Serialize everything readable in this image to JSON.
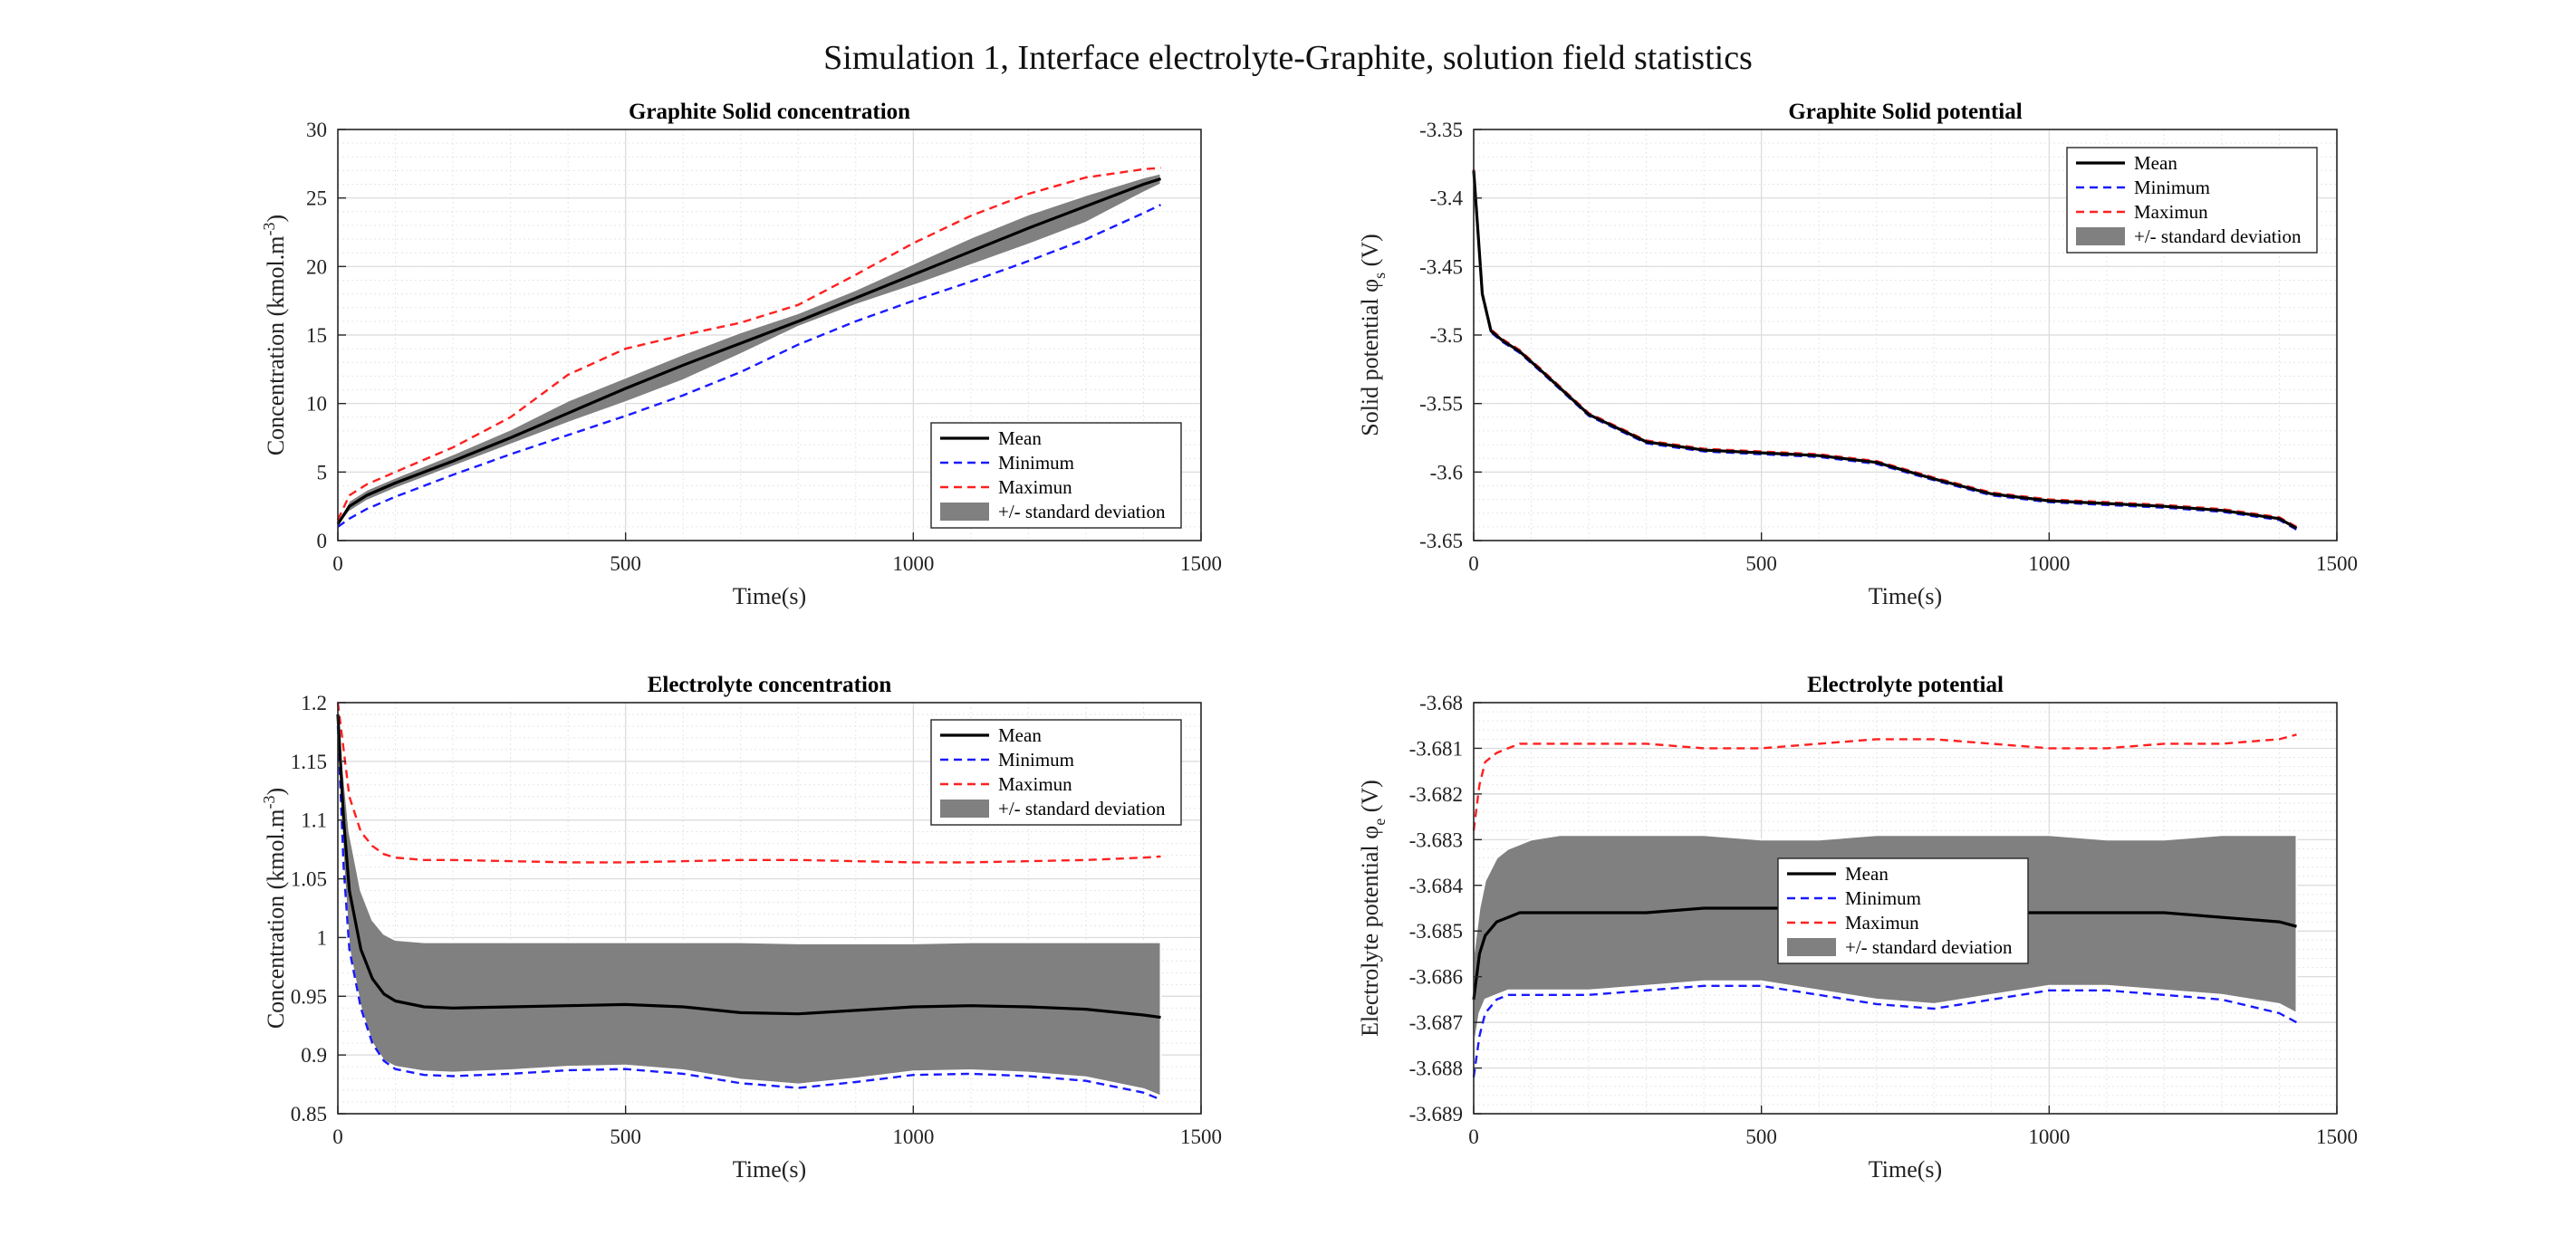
{
  "figure": {
    "title": "Simulation 1, Interface electrolyte-Graphite, solution field statistics"
  },
  "chart_data": [
    {
      "type": "line",
      "title": "Graphite Solid concentration",
      "xlabel": "Time(s)",
      "ylabel": "Concentration (kmol.m^-3)",
      "ylabel_parts": {
        "base": "Concentration (kmol.m",
        "sup": "-3",
        "end": ")"
      },
      "xlim": [
        0,
        1500
      ],
      "ylim": [
        0,
        30
      ],
      "xticks": [
        0,
        500,
        1000,
        1500
      ],
      "yticks": [
        0,
        5,
        10,
        15,
        20,
        25,
        30
      ],
      "grid": true,
      "legend_position": "bottom-right",
      "legend": [
        "Mean",
        "Minimum",
        "Maximun",
        "+/- standard deviation"
      ],
      "x": [
        0,
        20,
        50,
        100,
        200,
        300,
        400,
        500,
        600,
        700,
        800,
        900,
        1000,
        1100,
        1200,
        1300,
        1400,
        1430
      ],
      "series": [
        {
          "name": "Mean",
          "values": [
            1.2,
            2.5,
            3.3,
            4.2,
            5.8,
            7.5,
            9.3,
            11.1,
            12.8,
            14.4,
            16.0,
            17.7,
            19.4,
            21.1,
            22.8,
            24.4,
            26.0,
            26.4
          ]
        },
        {
          "name": "Minimum",
          "values": [
            1.0,
            1.6,
            2.3,
            3.2,
            4.8,
            6.3,
            7.7,
            9.1,
            10.6,
            12.3,
            14.3,
            16.0,
            17.5,
            18.9,
            20.4,
            22.0,
            23.9,
            24.5
          ]
        },
        {
          "name": "Maximun",
          "values": [
            1.5,
            3.3,
            4.1,
            5.0,
            6.8,
            9.0,
            12.1,
            14.0,
            15.0,
            15.9,
            17.2,
            19.4,
            21.7,
            23.7,
            25.3,
            26.5,
            27.1,
            27.2
          ]
        },
        {
          "name": "+/- standard deviation",
          "lower": [
            1.0,
            2.1,
            2.9,
            3.8,
            5.4,
            7.0,
            8.6,
            10.1,
            11.7,
            13.6,
            15.6,
            17.2,
            18.6,
            20.1,
            21.6,
            23.2,
            25.4,
            26.0
          ],
          "upper": [
            1.4,
            2.9,
            3.7,
            4.6,
            6.3,
            8.1,
            10.2,
            11.9,
            13.6,
            15.2,
            16.6,
            18.3,
            20.2,
            22.1,
            23.8,
            25.2,
            26.5,
            26.8
          ]
        }
      ]
    },
    {
      "type": "line",
      "title": "Graphite Solid potential",
      "xlabel": "Time(s)",
      "ylabel": "Solid potential φs (V)",
      "ylabel_parts": {
        "base": "Solid potential φ",
        "sub": "s",
        "end": " (V)"
      },
      "xlim": [
        0,
        1500
      ],
      "ylim": [
        -3.65,
        -3.35
      ],
      "xticks": [
        0,
        500,
        1000,
        1500
      ],
      "yticks": [
        -3.65,
        -3.6,
        -3.55,
        -3.5,
        -3.45,
        -3.4,
        -3.35
      ],
      "grid": true,
      "legend_position": "top-right",
      "legend": [
        "Mean",
        "Minimum",
        "Maximun",
        "+/- standard deviation"
      ],
      "x": [
        0,
        5,
        15,
        30,
        50,
        80,
        120,
        200,
        300,
        400,
        500,
        600,
        700,
        800,
        900,
        1000,
        1100,
        1200,
        1300,
        1400,
        1430
      ],
      "series": [
        {
          "name": "Mean",
          "values": [
            -3.38,
            -3.41,
            -3.47,
            -3.497,
            -3.504,
            -3.512,
            -3.527,
            -3.558,
            -3.578,
            -3.584,
            -3.586,
            -3.588,
            -3.593,
            -3.605,
            -3.616,
            -3.621,
            -3.623,
            -3.625,
            -3.628,
            -3.634,
            -3.641
          ]
        },
        {
          "name": "Minimum",
          "values": [
            -3.381,
            -3.411,
            -3.471,
            -3.498,
            -3.505,
            -3.513,
            -3.528,
            -3.559,
            -3.579,
            -3.585,
            -3.587,
            -3.589,
            -3.594,
            -3.606,
            -3.617,
            -3.622,
            -3.624,
            -3.626,
            -3.629,
            -3.635,
            -3.642
          ]
        },
        {
          "name": "Maximun",
          "values": [
            -3.379,
            -3.409,
            -3.469,
            -3.496,
            -3.503,
            -3.511,
            -3.526,
            -3.557,
            -3.577,
            -3.583,
            -3.585,
            -3.587,
            -3.592,
            -3.604,
            -3.615,
            -3.62,
            -3.622,
            -3.624,
            -3.627,
            -3.633,
            -3.64
          ]
        },
        {
          "name": "+/- standard deviation",
          "lower": [
            -3.3805,
            -3.4105,
            -3.4705,
            -3.4975,
            -3.5045,
            -3.5125,
            -3.5275,
            -3.5585,
            -3.5785,
            -3.5845,
            -3.5865,
            -3.5885,
            -3.5935,
            -3.6055,
            -3.6165,
            -3.6215,
            -3.6235,
            -3.6255,
            -3.6285,
            -3.6345,
            -3.6415
          ],
          "upper": [
            -3.3795,
            -3.4095,
            -3.4695,
            -3.4965,
            -3.5035,
            -3.5115,
            -3.5265,
            -3.5575,
            -3.5775,
            -3.5835,
            -3.5855,
            -3.5875,
            -3.5925,
            -3.6045,
            -3.6155,
            -3.6205,
            -3.6225,
            -3.6245,
            -3.6275,
            -3.6335,
            -3.6405
          ]
        }
      ]
    },
    {
      "type": "line",
      "title": "Electrolyte concentration",
      "xlabel": "Time(s)",
      "ylabel": "Concentration (kmol.m^-3)",
      "ylabel_parts": {
        "base": "Concentration (kmol.m",
        "sup": "-3",
        "end": ")"
      },
      "xlim": [
        0,
        1500
      ],
      "ylim": [
        0.85,
        1.2
      ],
      "xticks": [
        0,
        500,
        1000,
        1500
      ],
      "yticks": [
        0.85,
        0.9,
        0.95,
        1,
        1.05,
        1.1,
        1.15,
        1.2
      ],
      "ytick_labels": [
        "0.85",
        "0.9",
        "0.95",
        "1",
        "1.05",
        "1.1",
        "1.15",
        "1.2"
      ],
      "grid": true,
      "legend_position": "top-right",
      "legend": [
        "Mean",
        "Minimum",
        "Maximun",
        "+/- standard deviation"
      ],
      "x": [
        0,
        10,
        20,
        40,
        60,
        80,
        100,
        150,
        200,
        300,
        400,
        500,
        600,
        700,
        800,
        900,
        1000,
        1100,
        1200,
        1300,
        1400,
        1430
      ],
      "series": [
        {
          "name": "Mean",
          "values": [
            1.19,
            1.1,
            1.04,
            0.99,
            0.965,
            0.952,
            0.946,
            0.941,
            0.94,
            0.941,
            0.942,
            0.943,
            0.941,
            0.936,
            0.935,
            0.938,
            0.941,
            0.942,
            0.941,
            0.939,
            0.934,
            0.932
          ]
        },
        {
          "name": "Minimum",
          "values": [
            1.18,
            1.06,
            0.99,
            0.94,
            0.91,
            0.895,
            0.888,
            0.883,
            0.882,
            0.884,
            0.887,
            0.888,
            0.884,
            0.876,
            0.872,
            0.877,
            0.883,
            0.884,
            0.882,
            0.878,
            0.868,
            0.862
          ]
        },
        {
          "name": "Maximun",
          "values": [
            1.2,
            1.16,
            1.12,
            1.09,
            1.078,
            1.071,
            1.068,
            1.066,
            1.066,
            1.065,
            1.064,
            1.064,
            1.065,
            1.066,
            1.066,
            1.065,
            1.064,
            1.064,
            1.065,
            1.066,
            1.068,
            1.069
          ]
        },
        {
          "name": "+/- standard deviation",
          "lower": [
            1.18,
            1.06,
            0.99,
            0.94,
            0.91,
            0.895,
            0.89,
            0.886,
            0.885,
            0.887,
            0.89,
            0.891,
            0.887,
            0.879,
            0.875,
            0.88,
            0.886,
            0.887,
            0.885,
            0.881,
            0.871,
            0.865
          ],
          "upper": [
            1.2,
            1.14,
            1.09,
            1.04,
            1.015,
            1.003,
            0.998,
            0.996,
            0.996,
            0.996,
            0.996,
            0.996,
            0.996,
            0.996,
            0.995,
            0.995,
            0.995,
            0.996,
            0.996,
            0.996,
            0.996,
            0.996
          ]
        }
      ]
    },
    {
      "type": "line",
      "title": "Electrolyte potential",
      "xlabel": "Time(s)",
      "ylabel": "Electrolyte potential φe (V)",
      "ylabel_parts": {
        "base": "Electrolyte potential φ",
        "sub": "e",
        "end": " (V)"
      },
      "xlim": [
        0,
        1500
      ],
      "ylim": [
        -3.689,
        -3.68
      ],
      "xticks": [
        0,
        500,
        1000,
        1500
      ],
      "yticks": [
        -3.689,
        -3.688,
        -3.687,
        -3.686,
        -3.685,
        -3.684,
        -3.683,
        -3.682,
        -3.681,
        -3.68
      ],
      "grid": true,
      "legend_position": "center",
      "legend": [
        "Mean",
        "Minimum",
        "Maximun",
        "+/- standard deviation"
      ],
      "x": [
        0,
        10,
        20,
        40,
        60,
        80,
        100,
        150,
        200,
        300,
        400,
        500,
        600,
        700,
        800,
        900,
        1000,
        1100,
        1200,
        1300,
        1400,
        1430
      ],
      "series": [
        {
          "name": "Mean",
          "values": [
            -3.6865,
            -3.6855,
            -3.6851,
            -3.6848,
            -3.6847,
            -3.6846,
            -3.6846,
            -3.6846,
            -3.6846,
            -3.6846,
            -3.6845,
            -3.6845,
            -3.6845,
            -3.6846,
            -3.6846,
            -3.6846,
            -3.6846,
            -3.6846,
            -3.6846,
            -3.6847,
            -3.6848,
            -3.6849
          ]
        },
        {
          "name": "Minimum",
          "values": [
            -3.6882,
            -3.6873,
            -3.6868,
            -3.6865,
            -3.6864,
            -3.6864,
            -3.6864,
            -3.6864,
            -3.6864,
            -3.6863,
            -3.6862,
            -3.6862,
            -3.6864,
            -3.6866,
            -3.6867,
            -3.6865,
            -3.6863,
            -3.6863,
            -3.6864,
            -3.6865,
            -3.6868,
            -3.687
          ]
        },
        {
          "name": "Maximun",
          "values": [
            -3.6828,
            -3.6818,
            -3.6813,
            -3.6811,
            -3.681,
            -3.6809,
            -3.6809,
            -3.6809,
            -3.6809,
            -3.6809,
            -3.681,
            -3.681,
            -3.6809,
            -3.6808,
            -3.6808,
            -3.6809,
            -3.681,
            -3.681,
            -3.6809,
            -3.6809,
            -3.6808,
            -3.6807
          ]
        },
        {
          "name": "+/- standard deviation",
          "lower": [
            -3.6876,
            -3.6868,
            -3.6865,
            -3.6864,
            -3.6863,
            -3.6863,
            -3.6863,
            -3.6863,
            -3.6863,
            -3.6862,
            -3.6861,
            -3.6861,
            -3.6863,
            -3.6865,
            -3.6866,
            -3.6864,
            -3.6862,
            -3.6862,
            -3.6863,
            -3.6864,
            -3.6866,
            -3.6868
          ],
          "upper": [
            -3.6855,
            -3.6845,
            -3.6839,
            -3.6834,
            -3.6832,
            -3.6831,
            -3.683,
            -3.6829,
            -3.6829,
            -3.6829,
            -3.6829,
            -3.683,
            -3.683,
            -3.6829,
            -3.6829,
            -3.6829,
            -3.6829,
            -3.683,
            -3.683,
            -3.6829,
            -3.6829,
            -3.6829
          ]
        }
      ]
    }
  ]
}
